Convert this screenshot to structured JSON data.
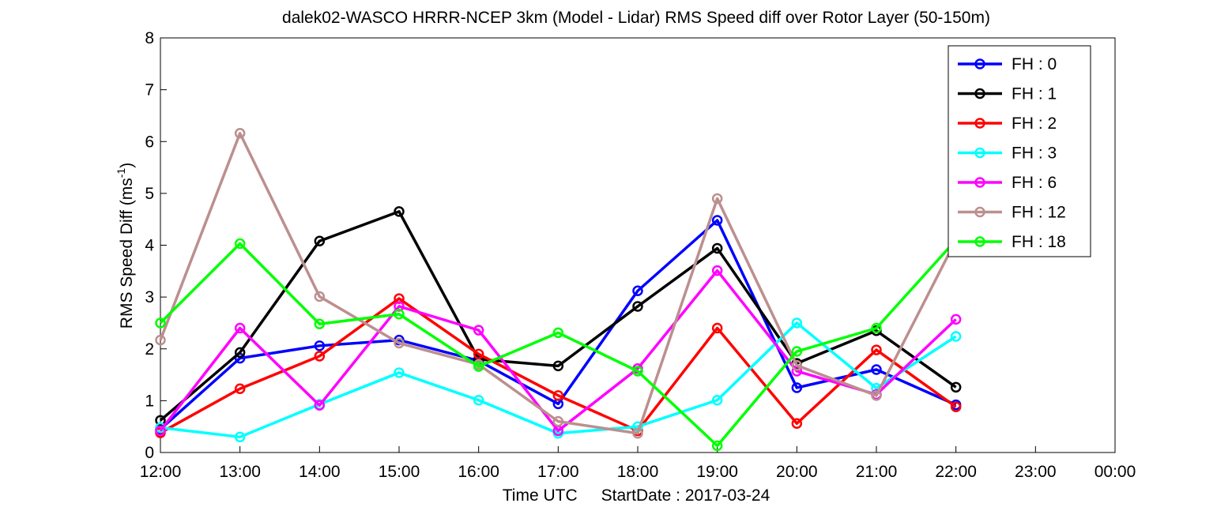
{
  "chart_data": {
    "type": "line",
    "title": "dalek02-WASCO HRRR-NCEP 3km (Model - Lidar) RMS Speed diff over Rotor Layer (50-150m)",
    "xlabel_main": "Time UTC",
    "xlabel_date": "StartDate : 2017-03-24",
    "ylabel_main": "RMS Speed Diff (ms",
    "ylabel_sup": "-1",
    "ylabel_close": ")",
    "ylim": [
      0,
      8
    ],
    "y_ticks": [
      "0",
      "1",
      "2",
      "3",
      "4",
      "5",
      "6",
      "7",
      "8"
    ],
    "x_ticks": [
      "12:00",
      "13:00",
      "14:00",
      "15:00",
      "16:00",
      "17:00",
      "18:00",
      "19:00",
      "20:00",
      "21:00",
      "22:00",
      "23:00",
      "00:00"
    ],
    "grid": false,
    "legend_position": "top-right",
    "series": [
      {
        "name": "FH : 0",
        "color": "#0000ff",
        "values": [
          0.45,
          1.82,
          2.06,
          2.17,
          1.77,
          0.94,
          3.12,
          4.48,
          1.25,
          1.6,
          0.92
        ]
      },
      {
        "name": "FH : 1",
        "color": "#000000",
        "values": [
          0.62,
          1.93,
          4.08,
          4.65,
          1.8,
          1.67,
          2.82,
          3.94,
          1.72,
          2.35,
          1.26
        ]
      },
      {
        "name": "FH : 2",
        "color": "#ff0000",
        "values": [
          0.38,
          1.23,
          1.86,
          2.97,
          1.9,
          1.1,
          0.42,
          2.4,
          0.56,
          1.98,
          0.88
        ]
      },
      {
        "name": "FH : 3",
        "color": "#00ffff",
        "values": [
          0.48,
          0.3,
          0.93,
          1.54,
          1.01,
          0.37,
          0.5,
          1.01,
          2.5,
          1.24,
          2.24
        ]
      },
      {
        "name": "FH : 6",
        "color": "#ff00ff",
        "values": [
          0.42,
          2.4,
          0.91,
          2.82,
          2.36,
          0.42,
          1.62,
          3.51,
          1.57,
          1.12,
          2.57
        ]
      },
      {
        "name": "FH : 12",
        "color": "#bc8f8f",
        "values": [
          2.17,
          6.16,
          3.01,
          2.11,
          1.7,
          0.6,
          0.37,
          4.9,
          1.68,
          1.1,
          4.1
        ]
      },
      {
        "name": "FH : 18",
        "color": "#00ff00",
        "values": [
          2.5,
          4.03,
          2.48,
          2.67,
          1.66,
          2.31,
          1.57,
          0.13,
          1.95,
          2.4,
          4.1
        ]
      }
    ]
  }
}
